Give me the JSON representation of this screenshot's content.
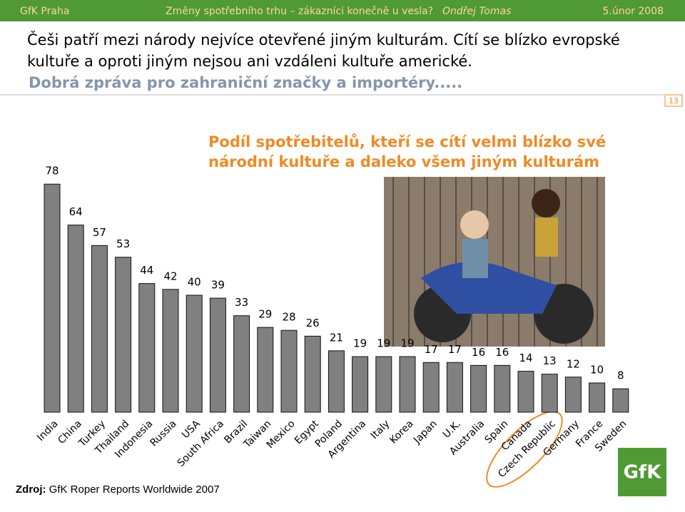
{
  "header": {
    "org": "GfK Praha",
    "topic": "Změny spotřebního trhu – zákazníci konečně u vesla?",
    "author": "Ondřej Tomas",
    "date": "5.únor 2008"
  },
  "headline": {
    "lines": [
      "Češi patří mezi národy nejvíce otevřené jiným kulturám. Cítí se blízko evropské",
      "kultuře a oproti jiným nejsou ani vzdáleni kultuře americké."
    ],
    "highlight": "Dobrá zpráva pro zahraniční značky a importéry....."
  },
  "page_number": "13",
  "chart_data": {
    "type": "bar",
    "title": [
      "Podíl spotřebitelů, kteří se cítí velmi blízko své",
      "národní kultuře a daleko všem jiným kulturám"
    ],
    "categories": [
      "India",
      "China",
      "Turkey",
      "Thailand",
      "Indonesia",
      "Russia",
      "USA",
      "South Africa",
      "Brazil",
      "Taiwan",
      "Mexico",
      "Egypt",
      "Poland",
      "Argentina",
      "Italy",
      "Korea",
      "Japan",
      "U.K.",
      "Australia",
      "Spain",
      "Canada",
      "Czech Republic",
      "Germany",
      "France",
      "Sweden"
    ],
    "values": [
      78,
      64,
      57,
      53,
      44,
      42,
      40,
      39,
      33,
      29,
      28,
      26,
      21,
      19,
      19,
      19,
      17,
      17,
      16,
      16,
      14,
      13,
      12,
      10,
      8
    ],
    "color": "#808080"
  },
  "source": {
    "label": "Zdroj:",
    "text": "GfK Roper Reports Worldwide 2007"
  },
  "logo": "GfK"
}
